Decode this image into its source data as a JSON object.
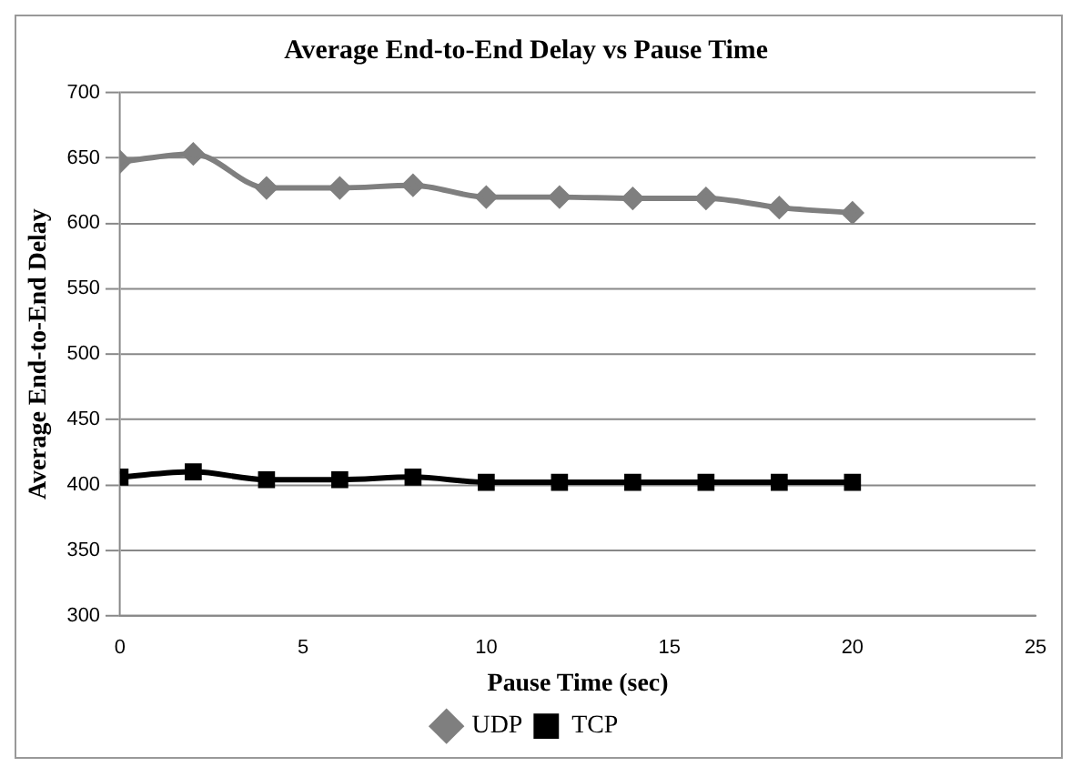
{
  "chart_data": {
    "type": "line",
    "title": "Average End-to-End Delay vs Pause Time",
    "xlabel": "Pause Time (sec)",
    "ylabel": "Average End-to-End Delay",
    "x": [
      0,
      2,
      4,
      6,
      8,
      10,
      12,
      14,
      16,
      18,
      20
    ],
    "series": [
      {
        "name": "UDP",
        "color": "#7f7f7f",
        "marker": "diamond",
        "values": [
          647,
          653,
          627,
          627,
          629,
          620,
          620,
          619,
          619,
          612,
          608
        ]
      },
      {
        "name": "TCP",
        "color": "#000000",
        "marker": "square",
        "values": [
          406,
          410,
          404,
          404,
          406,
          402,
          402,
          402,
          402,
          402,
          402
        ]
      }
    ],
    "xlim": [
      0,
      25
    ],
    "xticks": [
      0,
      5,
      10,
      15,
      20,
      25
    ],
    "ylim": [
      300,
      700
    ],
    "yticks": [
      300,
      350,
      400,
      450,
      500,
      550,
      600,
      650,
      700
    ],
    "grid": "y",
    "legend": "bottom"
  }
}
